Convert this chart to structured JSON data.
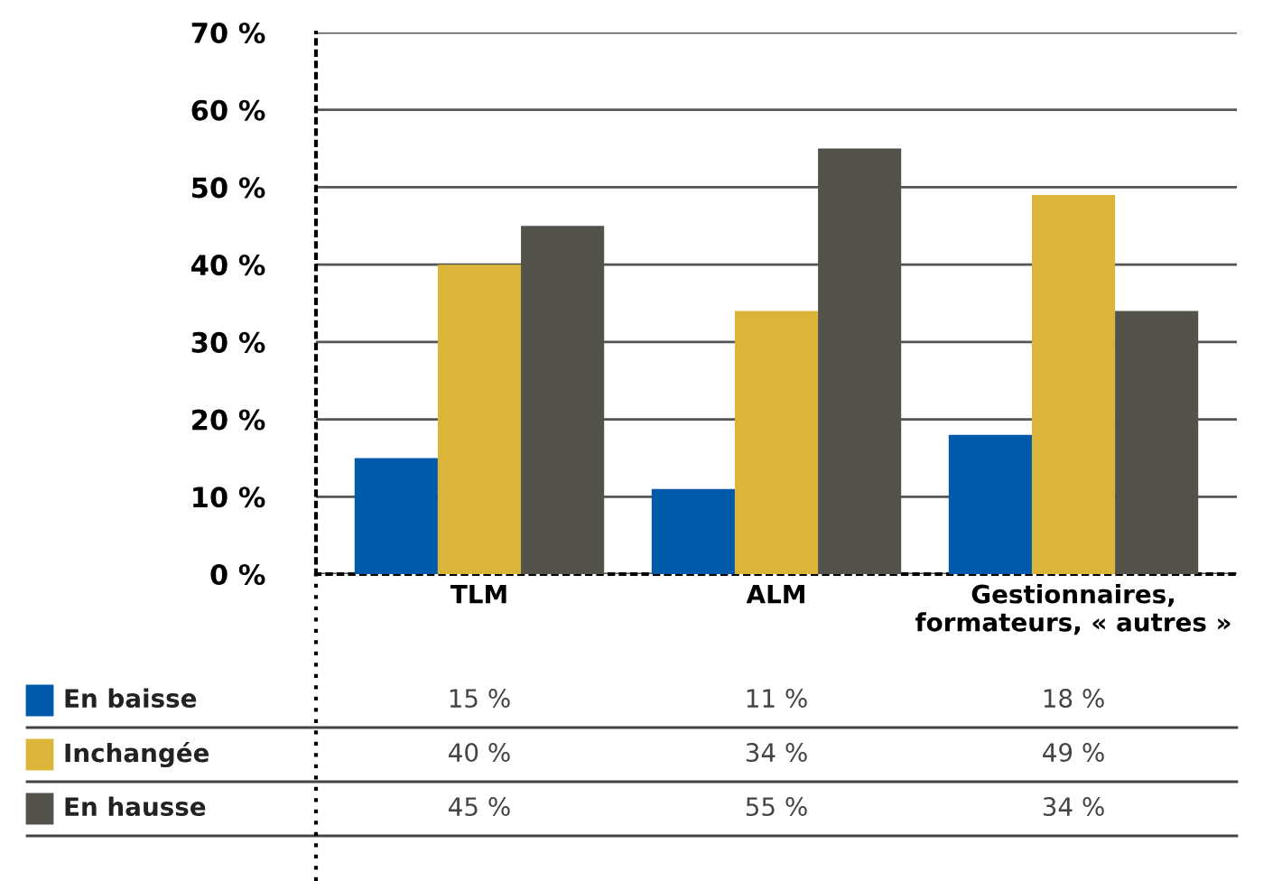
{
  "chart_data": {
    "type": "bar",
    "categories": [
      "TLM",
      "ALM",
      "Gestionnaires,\nformateurs, « autres »"
    ],
    "series": [
      {
        "name": "En baisse",
        "color": "#005aa9",
        "values": [
          15,
          11,
          18
        ],
        "value_labels": [
          "15 %",
          "11 %",
          "18 %"
        ]
      },
      {
        "name": "Inchangée",
        "color": "#dbb53a",
        "values": [
          40,
          34,
          49
        ],
        "value_labels": [
          "40 %",
          "34 %",
          "49 %"
        ]
      },
      {
        "name": "En hausse",
        "color": "#53534b",
        "values": [
          45,
          55,
          34
        ],
        "value_labels": [
          "45 %",
          "55 %",
          "34 %"
        ]
      }
    ],
    "ylim": [
      0,
      70
    ],
    "yticks": [
      {
        "value": 0,
        "label": "0 %"
      },
      {
        "value": 10,
        "label": "10 %"
      },
      {
        "value": 20,
        "label": "20 %"
      },
      {
        "value": 30,
        "label": "30 %"
      },
      {
        "value": 40,
        "label": "40 %"
      },
      {
        "value": 50,
        "label": "50 %"
      },
      {
        "value": 60,
        "label": "60 %"
      },
      {
        "value": 70,
        "label": "70 %"
      }
    ],
    "grid": "y",
    "legend": "bottom left"
  }
}
